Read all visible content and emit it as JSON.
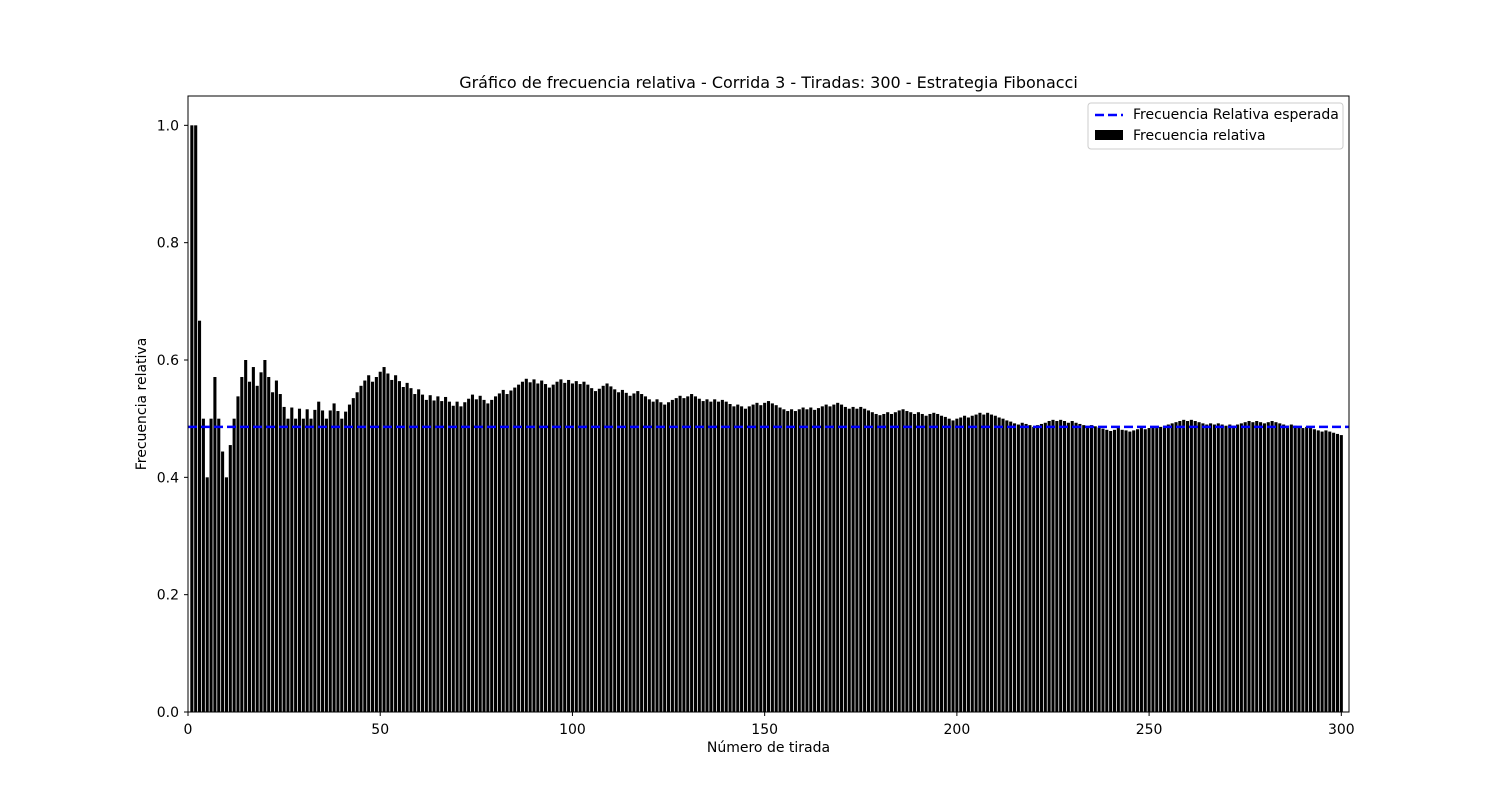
{
  "chart_data": {
    "type": "bar",
    "title": "Gráfico de frecuencia relativa - Corrida 3 - Tiradas: 300 - Estrategia Fibonacci",
    "xlabel": "Número de tirada",
    "ylabel": "Frecuencia relativa",
    "xlim": [
      0,
      302
    ],
    "ylim": [
      0,
      1.05
    ],
    "xticks": [
      "0",
      "50",
      "100",
      "150",
      "200",
      "250",
      "300"
    ],
    "yticks": [
      "0.0",
      "0.2",
      "0.4",
      "0.6",
      "0.8",
      "1.0"
    ],
    "grid": false,
    "legend_position": "top-right",
    "colors": {
      "bar": "#000000",
      "expected_line": "#0000ff"
    },
    "expected_line": {
      "name": "Frecuencia Relativa esperada",
      "value": 0.486,
      "style": "dashed"
    },
    "series": [
      {
        "name": "Frecuencia relativa",
        "x_start": 1,
        "values": [
          1.0,
          1.0,
          0.667,
          0.5,
          0.4,
          0.5,
          0.571,
          0.5,
          0.444,
          0.4,
          0.455,
          0.5,
          0.538,
          0.571,
          0.6,
          0.563,
          0.588,
          0.556,
          0.579,
          0.6,
          0.571,
          0.545,
          0.565,
          0.542,
          0.52,
          0.5,
          0.519,
          0.5,
          0.517,
          0.5,
          0.516,
          0.5,
          0.515,
          0.529,
          0.514,
          0.5,
          0.514,
          0.526,
          0.513,
          0.5,
          0.512,
          0.524,
          0.535,
          0.545,
          0.556,
          0.565,
          0.574,
          0.563,
          0.571,
          0.58,
          0.588,
          0.577,
          0.566,
          0.574,
          0.564,
          0.554,
          0.561,
          0.552,
          0.542,
          0.55,
          0.541,
          0.532,
          0.54,
          0.531,
          0.538,
          0.53,
          0.537,
          0.529,
          0.522,
          0.529,
          0.521,
          0.528,
          0.534,
          0.541,
          0.533,
          0.539,
          0.532,
          0.526,
          0.532,
          0.538,
          0.543,
          0.549,
          0.542,
          0.548,
          0.553,
          0.558,
          0.563,
          0.568,
          0.562,
          0.567,
          0.56,
          0.565,
          0.559,
          0.553,
          0.558,
          0.563,
          0.567,
          0.561,
          0.566,
          0.56,
          0.564,
          0.559,
          0.563,
          0.558,
          0.552,
          0.547,
          0.551,
          0.556,
          0.56,
          0.555,
          0.55,
          0.545,
          0.549,
          0.544,
          0.539,
          0.543,
          0.547,
          0.542,
          0.538,
          0.533,
          0.529,
          0.533,
          0.528,
          0.524,
          0.528,
          0.532,
          0.535,
          0.539,
          0.535,
          0.538,
          0.542,
          0.538,
          0.534,
          0.53,
          0.533,
          0.529,
          0.533,
          0.529,
          0.532,
          0.529,
          0.525,
          0.521,
          0.524,
          0.521,
          0.517,
          0.521,
          0.524,
          0.527,
          0.523,
          0.527,
          0.53,
          0.526,
          0.523,
          0.519,
          0.516,
          0.513,
          0.516,
          0.513,
          0.516,
          0.519,
          0.516,
          0.519,
          0.515,
          0.518,
          0.521,
          0.524,
          0.521,
          0.524,
          0.527,
          0.524,
          0.52,
          0.517,
          0.52,
          0.517,
          0.52,
          0.517,
          0.514,
          0.511,
          0.508,
          0.506,
          0.508,
          0.511,
          0.508,
          0.511,
          0.514,
          0.516,
          0.513,
          0.511,
          0.508,
          0.511,
          0.508,
          0.505,
          0.508,
          0.51,
          0.508,
          0.505,
          0.503,
          0.5,
          0.497,
          0.5,
          0.502,
          0.505,
          0.502,
          0.505,
          0.507,
          0.51,
          0.507,
          0.51,
          0.507,
          0.505,
          0.502,
          0.5,
          0.497,
          0.495,
          0.492,
          0.49,
          0.493,
          0.491,
          0.489,
          0.486,
          0.489,
          0.491,
          0.493,
          0.496,
          0.498,
          0.496,
          0.498,
          0.496,
          0.493,
          0.496,
          0.493,
          0.491,
          0.489,
          0.486,
          0.489,
          0.487,
          0.485,
          0.483,
          0.481,
          0.479,
          0.481,
          0.484,
          0.481,
          0.48,
          0.478,
          0.48,
          0.482,
          0.484,
          0.482,
          0.484,
          0.486,
          0.484,
          0.486,
          0.488,
          0.49,
          0.492,
          0.494,
          0.496,
          0.498,
          0.496,
          0.498,
          0.496,
          0.494,
          0.492,
          0.49,
          0.492,
          0.49,
          0.492,
          0.49,
          0.488,
          0.49,
          0.488,
          0.49,
          0.492,
          0.494,
          0.496,
          0.494,
          0.496,
          0.494,
          0.492,
          0.494,
          0.496,
          0.494,
          0.492,
          0.49,
          0.488,
          0.49,
          0.488,
          0.486,
          0.484,
          0.486,
          0.484,
          0.482,
          0.48,
          0.478,
          0.48,
          0.478,
          0.476,
          0.474,
          0.472
        ]
      }
    ]
  }
}
